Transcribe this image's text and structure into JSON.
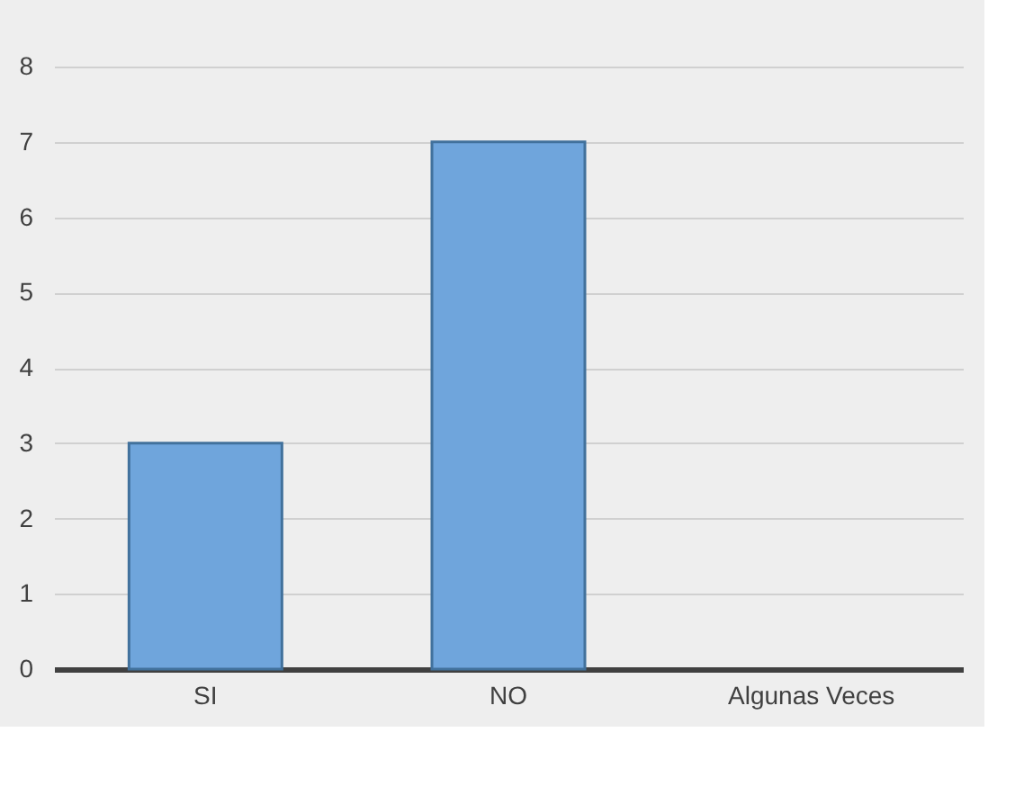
{
  "chart_data": {
    "type": "bar",
    "categories": [
      "SI",
      "NO",
      "Algunas Veces"
    ],
    "values": [
      3,
      7,
      0
    ],
    "color": "#6fa5dc",
    "ylim": [
      0,
      8
    ],
    "yticks": [
      0,
      1,
      2,
      3,
      4,
      5,
      6,
      7,
      8
    ],
    "grid": "y"
  }
}
